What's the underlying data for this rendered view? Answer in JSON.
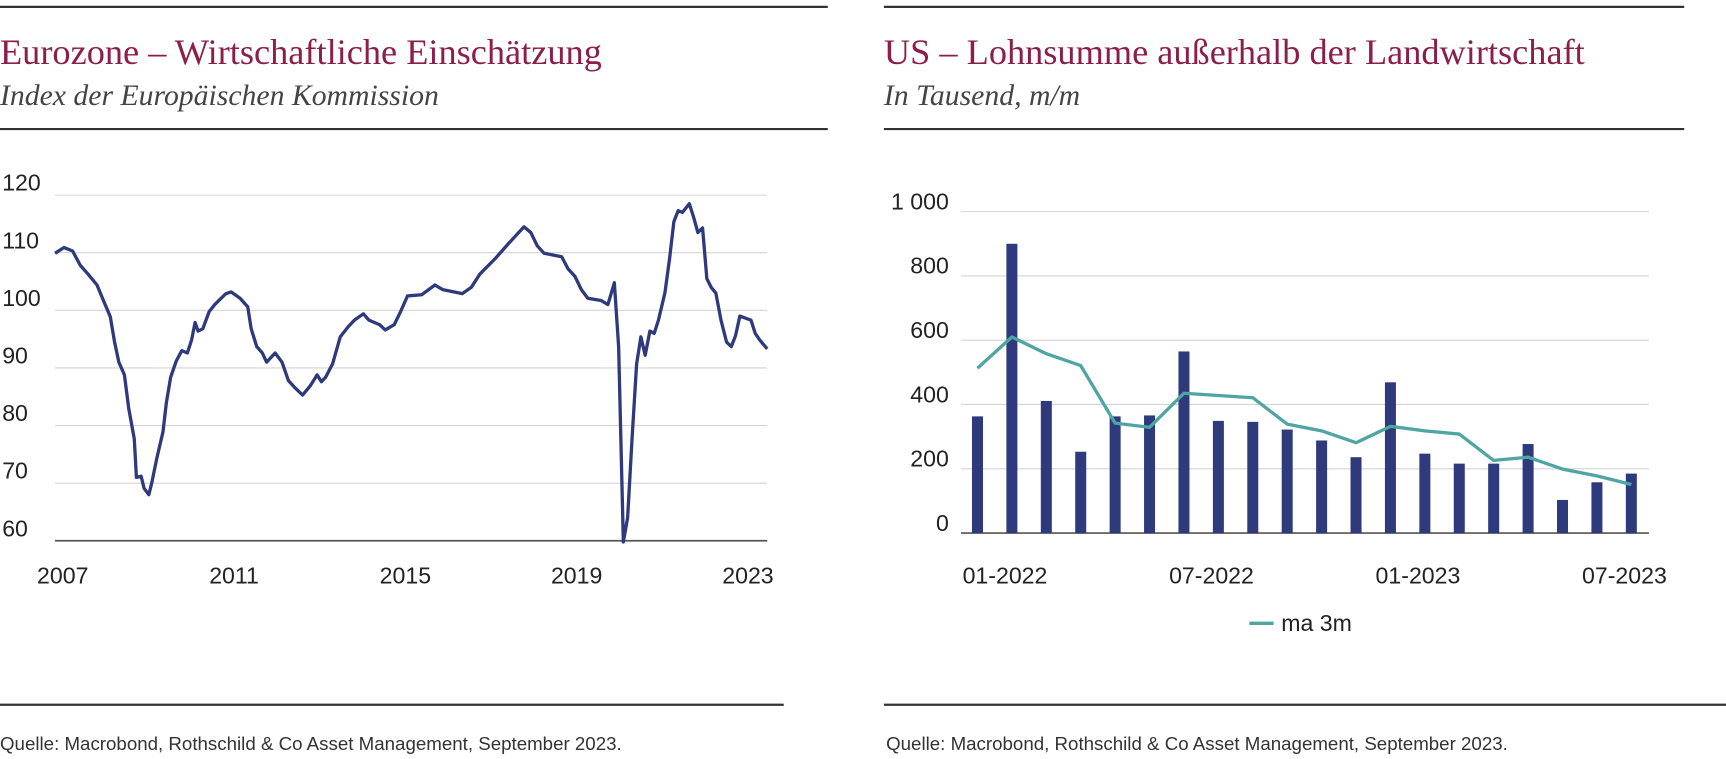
{
  "chart_data": [
    {
      "type": "line",
      "title": "Eurozone – Wirtschaftliche Einschätzung",
      "subtitle": "Index der Europäischen Kommission",
      "source": "Quelle: Macrobond, Rothschild & Co Asset Management, September 2023.",
      "x": [
        2006.82,
        2007.03,
        2007.23,
        2007.41,
        2007.59,
        2007.8,
        2007.95,
        2008.11,
        2008.21,
        2008.31,
        2008.44,
        2008.54,
        2008.67,
        2008.72,
        2008.83,
        2008.9,
        2009.01,
        2009.08,
        2009.19,
        2009.34,
        2009.42,
        2009.52,
        2009.65,
        2009.78,
        2009.91,
        2010.01,
        2010.09,
        2010.16,
        2010.27,
        2010.42,
        2010.55,
        2010.7,
        2010.81,
        2010.93,
        2011.14,
        2011.32,
        2011.4,
        2011.53,
        2011.66,
        2011.76,
        2011.96,
        2012.12,
        2012.27,
        2012.43,
        2012.6,
        2012.78,
        2012.94,
        2013.04,
        2013.14,
        2013.3,
        2013.48,
        2013.66,
        2013.81,
        2014.02,
        2014.15,
        2014.4,
        2014.53,
        2014.74,
        2014.89,
        2015.05,
        2015.38,
        2015.69,
        2015.87,
        2016.13,
        2016.33,
        2016.54,
        2016.74,
        2017.1,
        2017.41,
        2017.77,
        2017.93,
        2018.08,
        2018.24,
        2018.65,
        2018.8,
        2018.96,
        2019.11,
        2019.26,
        2019.57,
        2019.73,
        2019.88,
        2019.98,
        2020.09,
        2020.19,
        2020.29,
        2020.4,
        2020.5,
        2020.6,
        2020.71,
        2020.81,
        2020.91,
        2021.06,
        2021.17,
        2021.27,
        2021.37,
        2021.47,
        2021.63,
        2021.73,
        2021.83,
        2021.94,
        2022.04,
        2022.14,
        2022.25,
        2022.37,
        2022.5,
        2022.61,
        2022.71,
        2022.81,
        2023.07,
        2023.17,
        2023.27,
        2023.45
      ],
      "series": [
        {
          "color": "#2e3a7c",
          "values": [
            109.9,
            110.9,
            110.3,
            107.8,
            106.3,
            104.4,
            101.7,
            98.9,
            94.5,
            91.0,
            88.8,
            83.0,
            77.7,
            71.0,
            71.2,
            69.1,
            68.0,
            70.1,
            74.1,
            78.9,
            84.0,
            88.4,
            91.2,
            93.0,
            92.6,
            94.9,
            97.9,
            96.4,
            96.8,
            99.8,
            101.0,
            102.1,
            102.9,
            103.2,
            102.1,
            100.6,
            96.8,
            93.7,
            92.6,
            91.0,
            92.6,
            91.0,
            87.8,
            86.5,
            85.3,
            86.9,
            88.8,
            87.6,
            88.4,
            90.7,
            95.4,
            97.1,
            98.3,
            99.4,
            98.3,
            97.5,
            96.6,
            97.5,
            99.8,
            102.5,
            102.7,
            104.4,
            103.6,
            103.2,
            102.9,
            104.0,
            106.3,
            109.0,
            111.6,
            114.5,
            113.5,
            111.2,
            109.9,
            109.3,
            107.2,
            105.9,
            103.6,
            102.1,
            101.7,
            101.0,
            104.8,
            93.7,
            59.8,
            64.0,
            77.3,
            90.7,
            95.4,
            92.2,
            96.4,
            96.0,
            98.3,
            103.0,
            109.0,
            115.4,
            117.3,
            117.0,
            118.5,
            116.2,
            113.5,
            114.3,
            105.5,
            104.0,
            103.0,
            98.3,
            94.5,
            93.7,
            95.6,
            99.0,
            98.3,
            96.0,
            94.9,
            93.3
          ]
        }
      ],
      "xlim": [
        2006.82,
        2023.45
      ],
      "xticks": [
        2007,
        2011,
        2015,
        2019,
        2023
      ],
      "ylim": [
        60,
        120
      ],
      "yticks": [
        60,
        70,
        80,
        90,
        100,
        110,
        120
      ],
      "grid": true
    },
    {
      "type": "bar",
      "title": "US – Lohnsumme außerhalb der Landwirtschaft",
      "subtitle": "In Tausend, m/m",
      "source": "Quelle: Macrobond, Rothschild & Co Asset Management, September 2023.",
      "categories": [
        "01-2022",
        null,
        null,
        null,
        null,
        null,
        "07-2022",
        null,
        null,
        null,
        null,
        null,
        "01-2023",
        null,
        null,
        null,
        null,
        null,
        "07-2023",
        null
      ],
      "series": [
        {
          "type": "bar",
          "color": "#2e3a7c",
          "values": [
            363,
            900,
            411,
            253,
            363,
            366,
            565,
            349,
            346,
            322,
            288,
            236,
            469,
            247,
            216,
            216,
            277,
            103,
            158,
            185
          ]
        },
        {
          "type": "line",
          "name": "ma 3m",
          "color": "#4ea5a2",
          "values": [
            513,
            610,
            558,
            521,
            342,
            329,
            435,
            428,
            421,
            339,
            318,
            281,
            332,
            318,
            308,
            226,
            236,
            199,
            178,
            151
          ]
        }
      ],
      "ylim": [
        0,
        1000
      ],
      "yticks": [
        0,
        200,
        400,
        600,
        800,
        {
          "value": 1000,
          "label": "1 000"
        }
      ],
      "grid": true,
      "legend": "bottom"
    }
  ]
}
